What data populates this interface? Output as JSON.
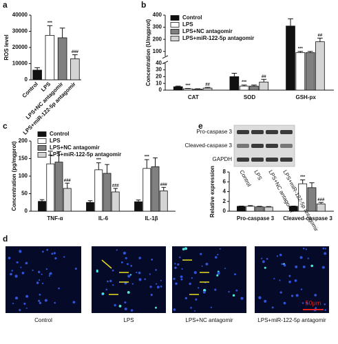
{
  "chart_data": [
    {
      "panel": "a",
      "type": "bar",
      "ylabel": "ROS level",
      "categories": [
        "Control",
        "LPS",
        "LPS+NC antagomir",
        "LPS+miR-122-5p antagomir"
      ],
      "values": [
        6000,
        27500,
        26000,
        13000
      ],
      "errors": [
        1500,
        6000,
        6000,
        2500
      ],
      "colors": [
        "#111111",
        "#ffffff",
        "#808080",
        "#d4d4d4"
      ],
      "annotations": [
        null,
        "***",
        null,
        "###"
      ],
      "ylim": [
        0,
        40000
      ],
      "yticks": [
        0,
        10000,
        20000,
        30000,
        40000
      ]
    },
    {
      "panel": "b",
      "type": "bar",
      "ylabel": "Concentration (U/mgprot)",
      "categories": [
        "CAT",
        "SOD",
        "GSH-px"
      ],
      "legend": "upper left",
      "series": [
        {
          "name": "Control",
          "color": "#111111",
          "values": [
            5,
            20,
            310
          ],
          "errors": [
            1,
            5,
            60
          ],
          "annotations": [
            null,
            null,
            null
          ]
        },
        {
          "name": "LPS",
          "color": "#ffffff",
          "values": [
            2,
            6,
            90
          ],
          "errors": [
            0.5,
            1.5,
            10
          ],
          "annotations": [
            "***",
            "***",
            "***"
          ]
        },
        {
          "name": "LPS+NC antagomir",
          "color": "#808080",
          "values": [
            1.5,
            6,
            90
          ],
          "errors": [
            0.5,
            1.5,
            10
          ],
          "annotations": [
            null,
            null,
            null
          ]
        },
        {
          "name": "LPS+miR-122-5p antagomir",
          "color": "#d4d4d4",
          "values": [
            3,
            12,
            180
          ],
          "errors": [
            1,
            4,
            30
          ],
          "annotations": [
            "##",
            "##",
            "##"
          ]
        }
      ],
      "ylim": [
        0,
        400
      ],
      "ybreak": [
        40,
        60
      ],
      "yticks": [
        0,
        10,
        20,
        30,
        40,
        100,
        200,
        300,
        400
      ]
    },
    {
      "panel": "c",
      "type": "bar",
      "ylabel": "Concentration (pg/mgprot)",
      "categories": [
        "TNF-α",
        "IL-6",
        "IL-1β"
      ],
      "legend": "upper left",
      "series": [
        {
          "name": "Control",
          "color": "#111111",
          "values": [
            28,
            25,
            27
          ],
          "errors": [
            5,
            5,
            5
          ],
          "annotations": [
            null,
            null,
            null
          ]
        },
        {
          "name": "LPS",
          "color": "#ffffff",
          "values": [
            135,
            118,
            122
          ],
          "errors": [
            25,
            20,
            25
          ],
          "annotations": [
            "***",
            "***",
            "***"
          ]
        },
        {
          "name": "LPS+NC antagomir",
          "color": "#808080",
          "values": [
            140,
            108,
            127
          ],
          "errors": [
            30,
            25,
            25
          ],
          "annotations": [
            null,
            null,
            null
          ]
        },
        {
          "name": "LPS+miR-122-5p antagomir",
          "color": "#d4d4d4",
          "values": [
            65,
            55,
            58
          ],
          "errors": [
            15,
            10,
            10
          ],
          "annotations": [
            "###",
            "###",
            "###"
          ]
        }
      ],
      "ylim": [
        0,
        200
      ],
      "yticks": [
        0,
        50,
        100,
        150,
        200
      ]
    },
    {
      "panel": "e",
      "type": "bar",
      "ylabel": "Relative expression",
      "categories": [
        "Pro-caspase 3",
        "Cleaved-caspase 3"
      ],
      "legend": "blot",
      "blot_bands": [
        "Pro-caspase 3",
        "Cleaved-caspase 3",
        "GAPDH"
      ],
      "series": [
        {
          "name": "Control",
          "color": "#111111",
          "values": [
            1,
            1
          ],
          "errors": [
            0.05,
            0.05
          ],
          "annotations": [
            null,
            null
          ]
        },
        {
          "name": "LPS",
          "color": "#ffffff",
          "values": [
            1,
            5.6
          ],
          "errors": [
            0.15,
            0.8
          ],
          "annotations": [
            null,
            "***"
          ]
        },
        {
          "name": "LPS+NC antagomir",
          "color": "#808080",
          "values": [
            0.9,
            4.8
          ],
          "errors": [
            0.1,
            1
          ],
          "annotations": [
            null,
            null
          ]
        },
        {
          "name": "LPS+miR-122-5p antagomir",
          "color": "#d4d4d4",
          "values": [
            0.85,
            1.5
          ],
          "errors": [
            0.1,
            0.3
          ],
          "annotations": [
            null,
            "###"
          ]
        }
      ],
      "ylim": [
        0,
        8
      ],
      "yticks": [
        0,
        2,
        4,
        6,
        8
      ]
    }
  ],
  "panel_d": {
    "label": "d",
    "images": [
      "Control",
      "LPS",
      "LPS+NC antagomir",
      "LPS+miR-122-5p antagomir"
    ],
    "scale_bar": "50μm"
  }
}
